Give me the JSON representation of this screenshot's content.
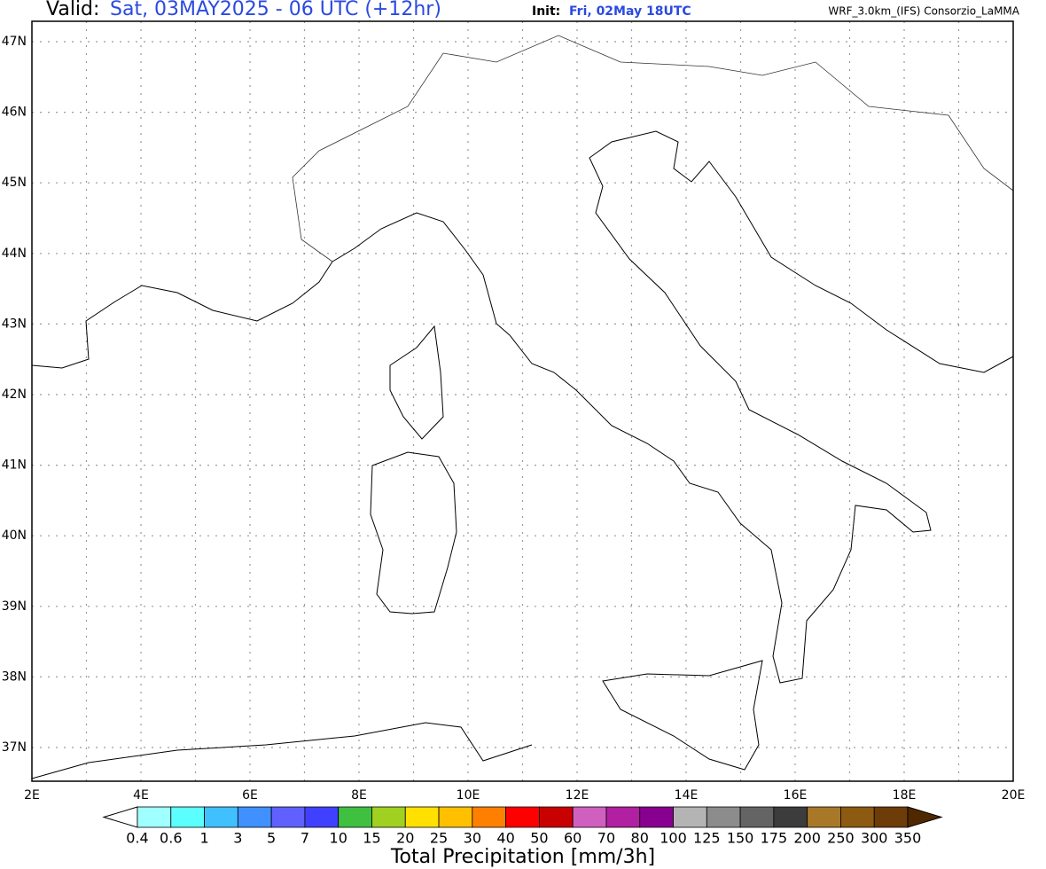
{
  "header": {
    "valid_label": "Valid:",
    "valid": "Sat, 03MAY2025 - 06 UTC (+12hr)",
    "init_label": "Init:",
    "init": "Fri, 02May 18UTC",
    "model": "WRF_3.0km_(IFS)  Consorzio_LaMMA"
  },
  "map": {
    "lat_labels": [
      "47N",
      "46N",
      "45N",
      "44N",
      "43N",
      "42N",
      "41N",
      "40N",
      "39N",
      "38N",
      "37N"
    ],
    "lon_labels": [
      "2E",
      "4E",
      "6E",
      "8E",
      "10E",
      "12E",
      "14E",
      "16E",
      "18E",
      "20E"
    ]
  },
  "colorbar": {
    "title": "Total Precipitation [mm/3h]",
    "labels": [
      "0.4",
      "0.6",
      "1",
      "3",
      "5",
      "7",
      "10",
      "15",
      "20",
      "25",
      "30",
      "40",
      "50",
      "60",
      "70",
      "80",
      "100",
      "125",
      "150",
      "175",
      "200",
      "250",
      "300",
      "350"
    ],
    "colors": [
      "#a0ffff",
      "#5cffff",
      "#40c0ff",
      "#4090ff",
      "#6060ff",
      "#4040ff",
      "#40c040",
      "#a0d020",
      "#ffe000",
      "#ffc000",
      "#ff8000",
      "#ff0000",
      "#c80000",
      "#d060c0",
      "#b020a0",
      "#880090",
      "#b4b4b4",
      "#8c8c8c",
      "#646464",
      "#3c3c3c",
      "#a87828",
      "#8c5a10",
      "#6e3c08"
    ],
    "under_color": "#ffffff",
    "over_color": "#502800"
  }
}
